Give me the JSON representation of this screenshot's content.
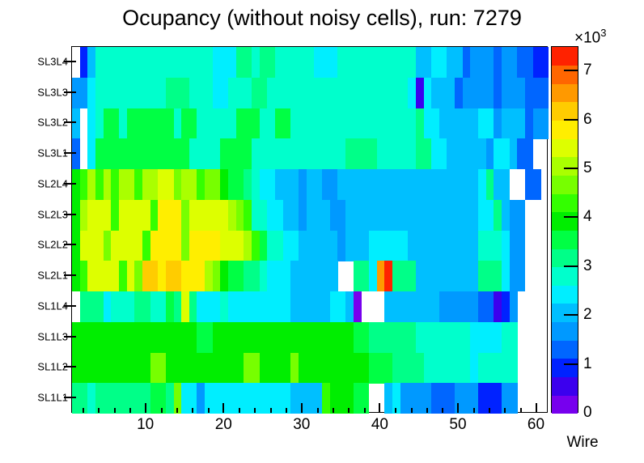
{
  "colors": {
    "background": "#ffffff",
    "frame": "#000000",
    "text": "#000000",
    "empty_cell": "#ffffff"
  },
  "chart_data": {
    "type": "heatmap",
    "title": "Ocupancy (without noisy cells), run: 7279",
    "xlabel": "Wire",
    "values_unit_note": "cell values are occupancy counts in thousands (x10^3)",
    "x_axis": {
      "min": 1,
      "max": 61,
      "major_ticks": [
        10,
        20,
        30,
        40,
        50,
        60
      ],
      "minor_tick_step": 2
    },
    "y_rows_top_to_bottom": [
      "SL3L4",
      "SL3L3",
      "SL3L2",
      "SL3L1",
      "SL2L4",
      "SL2L3",
      "SL2L2",
      "SL2L1",
      "SL1L4",
      "SL1L3",
      "SL1L2",
      "SL1L1"
    ],
    "colorbar": {
      "min": 0,
      "max": 7.5,
      "ticks": [
        0,
        1,
        2,
        3,
        4,
        5,
        6,
        7
      ],
      "exponent_base": "×10",
      "exponent_power": "3",
      "palette": [
        "#7700ee",
        "#3b00ee",
        "#0022ff",
        "#0066ff",
        "#0099ff",
        "#00bfff",
        "#00eeff",
        "#00ffcc",
        "#00ff88",
        "#00ff44",
        "#00ee00",
        "#33ff00",
        "#77ff00",
        "#aaff00",
        "#ddff00",
        "#ffee00",
        "#ffcc00",
        "#ff9900",
        "#ff6600",
        "#ff2200"
      ]
    },
    "cells_runs_by_row": {
      "SL3L4": [
        [
          1,
          1,
          null
        ],
        [
          2,
          2,
          0.95
        ],
        [
          3,
          3,
          2.05
        ],
        [
          4,
          18,
          2.85
        ],
        [
          19,
          21,
          2.45
        ],
        [
          22,
          23,
          3.25
        ],
        [
          24,
          24,
          2.85
        ],
        [
          25,
          26,
          3.25
        ],
        [
          27,
          31,
          2.85
        ],
        [
          32,
          34,
          2.45
        ],
        [
          35,
          44,
          2.85
        ],
        [
          45,
          46,
          2.05
        ],
        [
          47,
          48,
          2.45
        ],
        [
          49,
          50,
          2.05
        ],
        [
          51,
          51,
          1.3
        ],
        [
          52,
          54,
          1.7
        ],
        [
          55,
          55,
          1.3
        ],
        [
          56,
          57,
          1.7
        ],
        [
          58,
          59,
          1.3
        ],
        [
          60,
          61,
          0.95
        ]
      ],
      "SL3L3": [
        [
          1,
          2,
          1.7
        ],
        [
          3,
          3,
          2.45
        ],
        [
          4,
          12,
          2.85
        ],
        [
          13,
          15,
          3.25
        ],
        [
          16,
          18,
          2.85
        ],
        [
          19,
          20,
          2.45
        ],
        [
          21,
          23,
          2.85
        ],
        [
          24,
          25,
          3.25
        ],
        [
          26,
          43,
          2.85
        ],
        [
          44,
          44,
          2.45
        ],
        [
          45,
          45,
          0.55
        ],
        [
          46,
          46,
          2.45
        ],
        [
          47,
          49,
          2.05
        ],
        [
          50,
          50,
          1.3
        ],
        [
          51,
          54,
          1.7
        ],
        [
          55,
          55,
          1.3
        ],
        [
          56,
          58,
          1.7
        ],
        [
          59,
          61,
          1.3
        ]
      ],
      "SL3L2": [
        [
          1,
          1,
          2.05
        ],
        [
          2,
          2,
          null
        ],
        [
          3,
          3,
          2.45
        ],
        [
          4,
          4,
          2.85
        ],
        [
          5,
          6,
          3.55
        ],
        [
          7,
          7,
          2.85
        ],
        [
          8,
          13,
          3.55
        ],
        [
          14,
          14,
          2.85
        ],
        [
          15,
          16,
          3.55
        ],
        [
          17,
          21,
          2.85
        ],
        [
          22,
          24,
          3.55
        ],
        [
          25,
          26,
          2.85
        ],
        [
          27,
          28,
          3.55
        ],
        [
          29,
          44,
          2.85
        ],
        [
          45,
          45,
          3.25
        ],
        [
          46,
          47,
          2.45
        ],
        [
          48,
          52,
          2.05
        ],
        [
          53,
          54,
          2.45
        ],
        [
          55,
          55,
          1.7
        ],
        [
          56,
          58,
          2.05
        ],
        [
          59,
          59,
          1.3
        ],
        [
          60,
          61,
          1.7
        ]
      ],
      "SL3L1": [
        [
          1,
          1,
          1.3
        ],
        [
          2,
          2,
          null
        ],
        [
          3,
          3,
          2.45
        ],
        [
          4,
          15,
          3.55
        ],
        [
          16,
          19,
          2.85
        ],
        [
          20,
          23,
          3.55
        ],
        [
          24,
          35,
          2.85
        ],
        [
          36,
          39,
          3.25
        ],
        [
          40,
          44,
          2.85
        ],
        [
          45,
          46,
          3.25
        ],
        [
          47,
          48,
          2.45
        ],
        [
          49,
          53,
          2.05
        ],
        [
          54,
          54,
          1.7
        ],
        [
          55,
          56,
          2.45
        ],
        [
          57,
          57,
          2.05
        ],
        [
          58,
          59,
          1.3
        ],
        [
          60,
          61,
          null
        ]
      ],
      "SL2L4": [
        [
          1,
          1,
          4.0
        ],
        [
          2,
          2,
          4.3
        ],
        [
          3,
          3,
          5.05
        ],
        [
          4,
          4,
          4.3
        ],
        [
          5,
          5,
          5.05
        ],
        [
          6,
          6,
          4.3
        ],
        [
          7,
          8,
          5.05
        ],
        [
          9,
          9,
          4.3
        ],
        [
          10,
          11,
          5.05
        ],
        [
          12,
          13,
          5.45
        ],
        [
          14,
          14,
          4.7
        ],
        [
          15,
          16,
          5.05
        ],
        [
          17,
          17,
          4.3
        ],
        [
          18,
          19,
          4.7
        ],
        [
          20,
          20,
          4.0
        ],
        [
          21,
          22,
          3.4
        ],
        [
          23,
          23,
          3.2
        ],
        [
          24,
          24,
          2.85
        ],
        [
          25,
          26,
          2.45
        ],
        [
          27,
          29,
          2.05
        ],
        [
          30,
          30,
          1.7
        ],
        [
          31,
          32,
          2.05
        ],
        [
          33,
          34,
          1.7
        ],
        [
          35,
          52,
          2.05
        ],
        [
          53,
          53,
          2.45
        ],
        [
          54,
          54,
          3.25
        ],
        [
          55,
          56,
          2.05
        ],
        [
          57,
          58,
          null
        ],
        [
          59,
          60,
          1.3
        ],
        [
          61,
          61,
          null
        ]
      ],
      "SL2L3": [
        [
          1,
          1,
          4.0
        ],
        [
          2,
          2,
          5.05
        ],
        [
          3,
          5,
          5.45
        ],
        [
          6,
          6,
          4.3
        ],
        [
          7,
          10,
          5.45
        ],
        [
          11,
          11,
          4.3
        ],
        [
          12,
          14,
          5.8
        ],
        [
          15,
          15,
          4.7
        ],
        [
          16,
          20,
          5.45
        ],
        [
          21,
          21,
          5.05
        ],
        [
          22,
          22,
          4.7
        ],
        [
          23,
          23,
          4.3
        ],
        [
          24,
          25,
          2.9
        ],
        [
          26,
          27,
          2.45
        ],
        [
          28,
          29,
          2.05
        ],
        [
          30,
          30,
          1.7
        ],
        [
          31,
          33,
          2.05
        ],
        [
          34,
          35,
          1.7
        ],
        [
          36,
          52,
          2.05
        ],
        [
          53,
          54,
          2.45
        ],
        [
          55,
          55,
          3.25
        ],
        [
          56,
          56,
          2.05
        ],
        [
          57,
          58,
          1.7
        ],
        [
          59,
          61,
          null
        ]
      ],
      "SL2L2": [
        [
          1,
          1,
          4.0
        ],
        [
          2,
          4,
          5.45
        ],
        [
          5,
          5,
          4.7
        ],
        [
          6,
          9,
          5.45
        ],
        [
          10,
          10,
          4.3
        ],
        [
          11,
          14,
          5.8
        ],
        [
          15,
          15,
          4.7
        ],
        [
          16,
          19,
          5.8
        ],
        [
          20,
          21,
          5.6
        ],
        [
          22,
          22,
          5.45
        ],
        [
          23,
          23,
          5.05
        ],
        [
          24,
          24,
          4.3
        ],
        [
          25,
          25,
          3.4
        ],
        [
          26,
          27,
          2.85
        ],
        [
          28,
          29,
          2.45
        ],
        [
          30,
          34,
          2.05
        ],
        [
          35,
          35,
          1.7
        ],
        [
          36,
          38,
          2.05
        ],
        [
          39,
          43,
          2.45
        ],
        [
          44,
          52,
          2.05
        ],
        [
          53,
          55,
          2.85
        ],
        [
          56,
          56,
          2.45
        ],
        [
          57,
          58,
          1.7
        ],
        [
          59,
          61,
          null
        ]
      ],
      "SL2L1": [
        [
          1,
          1,
          4.0
        ],
        [
          2,
          2,
          4.3
        ],
        [
          3,
          6,
          5.6
        ],
        [
          7,
          7,
          4.4
        ],
        [
          8,
          8,
          5.3
        ],
        [
          9,
          9,
          4.5
        ],
        [
          10,
          11,
          6.2
        ],
        [
          12,
          12,
          5.8
        ],
        [
          13,
          14,
          6.2
        ],
        [
          15,
          17,
          5.8
        ],
        [
          18,
          18,
          5.05
        ],
        [
          19,
          19,
          4.7
        ],
        [
          20,
          20,
          4.0
        ],
        [
          21,
          22,
          3.55
        ],
        [
          23,
          24,
          3.2
        ],
        [
          25,
          25,
          2.85
        ],
        [
          26,
          28,
          2.45
        ],
        [
          29,
          34,
          2.05
        ],
        [
          35,
          36,
          null
        ],
        [
          37,
          38,
          3.25
        ],
        [
          39,
          39,
          2.45
        ],
        [
          40,
          40,
          6.55
        ],
        [
          41,
          41,
          7.35
        ],
        [
          42,
          44,
          3.25
        ],
        [
          45,
          52,
          2.05
        ],
        [
          53,
          55,
          3.0
        ],
        [
          56,
          56,
          2.45
        ],
        [
          57,
          58,
          1.7
        ],
        [
          59,
          61,
          null
        ]
      ],
      "SL1L4": [
        [
          1,
          1,
          null
        ],
        [
          2,
          4,
          3.2
        ],
        [
          5,
          5,
          2.45
        ],
        [
          6,
          8,
          2.85
        ],
        [
          9,
          10,
          3.2
        ],
        [
          11,
          12,
          2.85
        ],
        [
          13,
          13,
          3.55
        ],
        [
          14,
          14,
          3.2
        ],
        [
          15,
          15,
          5.45
        ],
        [
          16,
          16,
          3.2
        ],
        [
          17,
          19,
          2.45
        ],
        [
          20,
          20,
          2.85
        ],
        [
          21,
          28,
          2.45
        ],
        [
          29,
          33,
          2.05
        ],
        [
          34,
          35,
          2.45
        ],
        [
          36,
          36,
          2.05
        ],
        [
          37,
          37,
          0.2
        ],
        [
          38,
          40,
          null
        ],
        [
          41,
          47,
          2.05
        ],
        [
          48,
          52,
          1.7
        ],
        [
          53,
          54,
          1.3
        ],
        [
          55,
          55,
          0.55
        ],
        [
          56,
          56,
          0.95
        ],
        [
          57,
          57,
          1.7
        ],
        [
          58,
          61,
          null
        ]
      ],
      "SL1L3": [
        [
          1,
          16,
          4.0
        ],
        [
          17,
          18,
          3.7
        ],
        [
          19,
          36,
          4.0
        ],
        [
          37,
          38,
          3.4
        ],
        [
          39,
          44,
          3.25
        ],
        [
          45,
          51,
          2.85
        ],
        [
          52,
          55,
          2.45
        ],
        [
          56,
          57,
          2.85
        ],
        [
          58,
          61,
          null
        ]
      ],
      "SL1L2": [
        [
          1,
          10,
          4.0
        ],
        [
          11,
          12,
          4.5
        ],
        [
          13,
          22,
          4.0
        ],
        [
          23,
          24,
          4.5
        ],
        [
          25,
          28,
          4.0
        ],
        [
          29,
          29,
          4.5
        ],
        [
          30,
          38,
          4.0
        ],
        [
          39,
          41,
          3.4
        ],
        [
          42,
          45,
          3.25
        ],
        [
          46,
          51,
          2.85
        ],
        [
          52,
          52,
          2.45
        ],
        [
          53,
          57,
          2.85
        ],
        [
          58,
          61,
          null
        ]
      ],
      "SL1L1": [
        [
          1,
          2,
          3.25
        ],
        [
          3,
          3,
          2.85
        ],
        [
          4,
          10,
          3.25
        ],
        [
          11,
          12,
          3.55
        ],
        [
          13,
          13,
          3.25
        ],
        [
          14,
          14,
          4.7
        ],
        [
          15,
          16,
          2.45
        ],
        [
          17,
          17,
          1.7
        ],
        [
          18,
          28,
          2.45
        ],
        [
          29,
          32,
          2.05
        ],
        [
          33,
          33,
          4.3
        ],
        [
          34,
          36,
          4.0
        ],
        [
          37,
          38,
          3.4
        ],
        [
          39,
          40,
          null
        ],
        [
          41,
          41,
          2.05
        ],
        [
          42,
          42,
          2.45
        ],
        [
          43,
          46,
          1.7
        ],
        [
          47,
          49,
          1.3
        ],
        [
          50,
          52,
          1.7
        ],
        [
          53,
          55,
          1.1
        ],
        [
          56,
          57,
          1.7
        ],
        [
          58,
          61,
          null
        ]
      ]
    }
  }
}
